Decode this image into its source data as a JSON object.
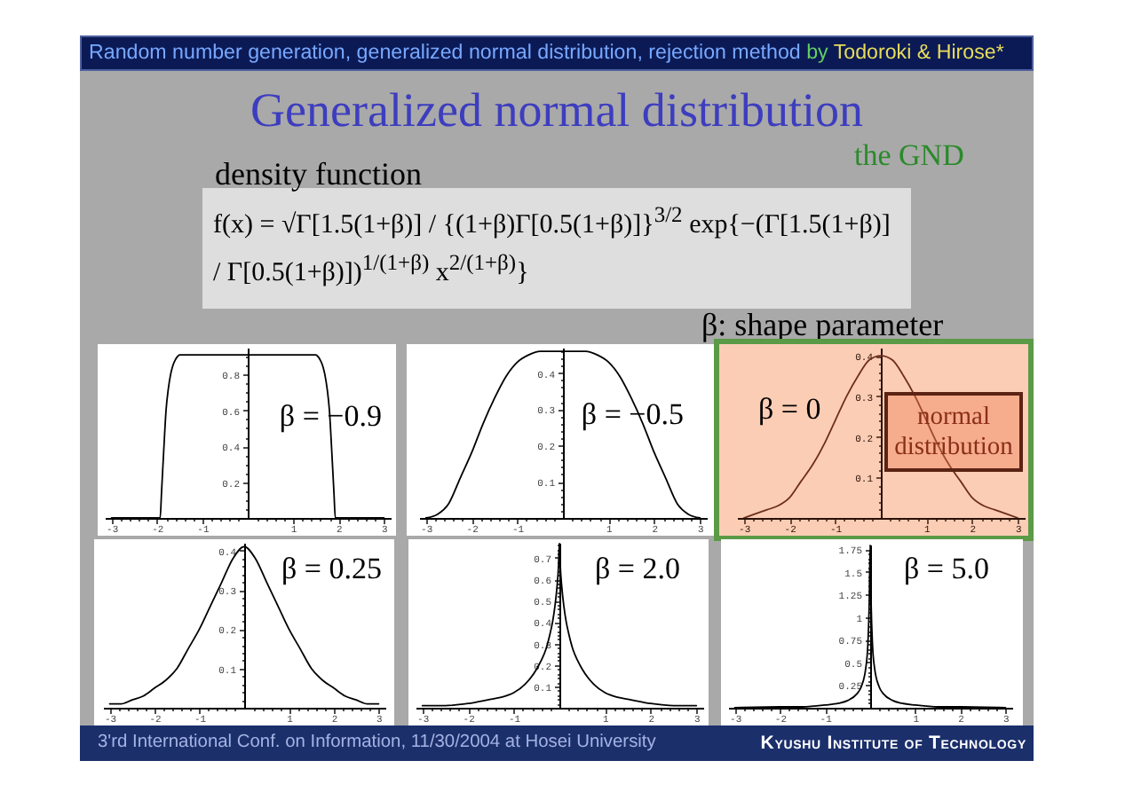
{
  "chart_data": [
    {
      "type": "other",
      "title": "Generalized normal distribution",
      "annotations": [
        "Random number generation, generalized normal distribution, rejection method",
        "by",
        "Todoroki & Hirose*",
        "the GND",
        "density function",
        "f(x) = √Γ[1.5(1+β)] / {(1+β)Γ[0.5(1+β)]}$^{3/2}$ exp{−(Γ[1.5(1+β)] / Γ[0.5(1+β)])$^{1/(1+β)}$ x$^{2/(1+β)}$}",
        "β: shape parameter"
      ]
    },
    {
      "type": "line",
      "color": "#000000",
      "annotations": [
        "β = −0.9"
      ],
      "xlim": [
        -3.15,
        3.15
      ],
      "ylim": [
        0,
        0.95
      ],
      "x": [
        -3,
        -2,
        -1.93,
        -1.9,
        -1.85,
        -1.8,
        -1.75,
        -1.7,
        -1.65,
        -1.6,
        -1.55,
        -1.5,
        0,
        1.5,
        1.55,
        1.6,
        1.65,
        1.7,
        1.75,
        1.8,
        1.85,
        1.9,
        1.93,
        2,
        3
      ],
      "values": [
        0,
        0,
        0,
        0.14,
        0.38,
        0.6,
        0.72,
        0.8,
        0.85,
        0.88,
        0.9,
        0.91,
        0.91,
        0.91,
        0.9,
        0.88,
        0.85,
        0.8,
        0.72,
        0.6,
        0.38,
        0.14,
        0,
        0,
        0
      ],
      "xticks": [
        -3,
        {
          "value": -2.8,
          "label": null
        },
        {
          "value": -2.6,
          "label": null
        },
        {
          "value": -2.4,
          "label": null
        },
        {
          "value": -2.2,
          "label": null
        },
        -2,
        {
          "value": -1.8,
          "label": null
        },
        {
          "value": -1.6,
          "label": null
        },
        {
          "value": -1.4,
          "label": null
        },
        {
          "value": -1.2,
          "label": null
        },
        -1,
        {
          "value": -0.8,
          "label": null
        },
        {
          "value": -0.6,
          "label": null
        },
        {
          "value": -0.4,
          "label": null
        },
        {
          "value": -0.2,
          "label": null
        },
        {
          "value": 0.2,
          "label": null
        },
        {
          "value": 0.4,
          "label": null
        },
        {
          "value": 0.6,
          "label": null
        },
        {
          "value": 0.8,
          "label": null
        },
        1,
        {
          "value": 1.2,
          "label": null
        },
        {
          "value": 1.4,
          "label": null
        },
        {
          "value": 1.6,
          "label": null
        },
        {
          "value": 1.8,
          "label": null
        },
        2,
        {
          "value": 2.2,
          "label": null
        },
        {
          "value": 2.4,
          "label": null
        },
        {
          "value": 2.6,
          "label": null
        },
        {
          "value": 2.8,
          "label": null
        },
        3
      ],
      "yticks": [
        {
          "value": 0.05,
          "label": null
        },
        {
          "value": 0.1,
          "label": null
        },
        {
          "value": 0.15,
          "label": null
        },
        0.2,
        {
          "value": 0.25,
          "label": null
        },
        {
          "value": 0.3,
          "label": null
        },
        {
          "value": 0.35,
          "label": null
        },
        0.4,
        {
          "value": 0.45,
          "label": null
        },
        {
          "value": 0.5,
          "label": null
        },
        {
          "value": 0.55,
          "label": null
        },
        0.6,
        {
          "value": 0.65,
          "label": null
        },
        {
          "value": 0.7,
          "label": null
        },
        {
          "value": 0.75,
          "label": null
        },
        0.8,
        {
          "value": 0.85,
          "label": null
        },
        {
          "value": 0.9,
          "label": null
        }
      ]
    },
    {
      "type": "line",
      "color": "#000000",
      "annotations": [
        "β = −0.5"
      ],
      "xlim": [
        -3.15,
        3.15
      ],
      "ylim": [
        0,
        0.47
      ],
      "x": [
        -3,
        -2.75,
        -2.5,
        -2.25,
        -2,
        -1.75,
        -1.5,
        -1.25,
        -1,
        -0.75,
        -0.5,
        0,
        0.5,
        0.75,
        1,
        1.25,
        1.5,
        1.75,
        2,
        2.25,
        2.5,
        2.75,
        3
      ],
      "values": [
        0,
        0.01,
        0.04,
        0.11,
        0.18,
        0.26,
        0.33,
        0.39,
        0.43,
        0.45,
        0.46,
        0.46,
        0.46,
        0.45,
        0.43,
        0.39,
        0.33,
        0.26,
        0.18,
        0.11,
        0.04,
        0.01,
        0
      ],
      "xticks": [
        -3,
        {
          "value": -2.8,
          "label": null
        },
        {
          "value": -2.6,
          "label": null
        },
        {
          "value": -2.4,
          "label": null
        },
        {
          "value": -2.2,
          "label": null
        },
        -2,
        {
          "value": -1.8,
          "label": null
        },
        {
          "value": -1.6,
          "label": null
        },
        {
          "value": -1.4,
          "label": null
        },
        {
          "value": -1.2,
          "label": null
        },
        -1,
        {
          "value": -0.8,
          "label": null
        },
        {
          "value": -0.6,
          "label": null
        },
        {
          "value": -0.4,
          "label": null
        },
        {
          "value": -0.2,
          "label": null
        },
        {
          "value": 0.2,
          "label": null
        },
        {
          "value": 0.4,
          "label": null
        },
        {
          "value": 0.6,
          "label": null
        },
        {
          "value": 0.8,
          "label": null
        },
        1,
        {
          "value": 1.2,
          "label": null
        },
        {
          "value": 1.4,
          "label": null
        },
        {
          "value": 1.6,
          "label": null
        },
        {
          "value": 1.8,
          "label": null
        },
        2,
        {
          "value": 2.2,
          "label": null
        },
        {
          "value": 2.4,
          "label": null
        },
        {
          "value": 2.6,
          "label": null
        },
        {
          "value": 2.8,
          "label": null
        },
        3
      ],
      "yticks": [
        {
          "value": 0.02,
          "label": null
        },
        {
          "value": 0.04,
          "label": null
        },
        {
          "value": 0.06,
          "label": null
        },
        {
          "value": 0.08,
          "label": null
        },
        0.1,
        {
          "value": 0.12,
          "label": null
        },
        {
          "value": 0.14,
          "label": null
        },
        {
          "value": 0.16,
          "label": null
        },
        {
          "value": 0.18,
          "label": null
        },
        0.2,
        {
          "value": 0.22,
          "label": null
        },
        {
          "value": 0.24,
          "label": null
        },
        {
          "value": 0.26,
          "label": null
        },
        {
          "value": 0.28,
          "label": null
        },
        0.3,
        {
          "value": 0.32,
          "label": null
        },
        {
          "value": 0.34,
          "label": null
        },
        {
          "value": 0.36,
          "label": null
        },
        {
          "value": 0.38,
          "label": null
        },
        0.4,
        {
          "value": 0.42,
          "label": null
        },
        {
          "value": 0.44,
          "label": null
        },
        {
          "value": 0.46,
          "label": null
        }
      ]
    },
    {
      "type": "line",
      "color": "#6e2e1c",
      "annotations": [
        "β = 0",
        "normal distribution"
      ],
      "xlim": [
        -3.15,
        3.15
      ],
      "ylim": [
        0,
        0.42
      ],
      "x": [
        -3,
        -2.75,
        -2.5,
        -2.25,
        -2,
        -1.75,
        -1.5,
        -1.25,
        -1,
        -0.75,
        -0.5,
        -0.25,
        0,
        0.25,
        0.5,
        0.75,
        1,
        1.25,
        1.5,
        1.75,
        2,
        2.25,
        2.5,
        2.75,
        3
      ],
      "values": [
        0,
        0.01,
        0.02,
        0.03,
        0.05,
        0.09,
        0.13,
        0.18,
        0.24,
        0.3,
        0.35,
        0.39,
        0.4,
        0.39,
        0.35,
        0.3,
        0.24,
        0.18,
        0.13,
        0.09,
        0.05,
        0.03,
        0.02,
        0.01,
        0
      ],
      "xticks": [
        -3,
        {
          "value": -2.8,
          "label": null
        },
        {
          "value": -2.6,
          "label": null
        },
        {
          "value": -2.4,
          "label": null
        },
        {
          "value": -2.2,
          "label": null
        },
        -2,
        {
          "value": -1.8,
          "label": null
        },
        {
          "value": -1.6,
          "label": null
        },
        {
          "value": -1.4,
          "label": null
        },
        {
          "value": -1.2,
          "label": null
        },
        -1,
        {
          "value": -0.8,
          "label": null
        },
        {
          "value": -0.6,
          "label": null
        },
        {
          "value": -0.4,
          "label": null
        },
        {
          "value": -0.2,
          "label": null
        },
        {
          "value": 0.2,
          "label": null
        },
        {
          "value": 0.4,
          "label": null
        },
        {
          "value": 0.6,
          "label": null
        },
        {
          "value": 0.8,
          "label": null
        },
        1,
        {
          "value": 1.2,
          "label": null
        },
        {
          "value": 1.4,
          "label": null
        },
        {
          "value": 1.6,
          "label": null
        },
        {
          "value": 1.8,
          "label": null
        },
        2,
        {
          "value": 2.2,
          "label": null
        },
        {
          "value": 2.4,
          "label": null
        },
        {
          "value": 2.6,
          "label": null
        },
        {
          "value": 2.8,
          "label": null
        },
        3
      ],
      "yticks": [
        {
          "value": 0.02,
          "label": null
        },
        {
          "value": 0.04,
          "label": null
        },
        {
          "value": 0.06,
          "label": null
        },
        {
          "value": 0.08,
          "label": null
        },
        0.1,
        {
          "value": 0.12,
          "label": null
        },
        {
          "value": 0.14,
          "label": null
        },
        {
          "value": 0.16,
          "label": null
        },
        {
          "value": 0.18,
          "label": null
        },
        0.2,
        {
          "value": 0.22,
          "label": null
        },
        {
          "value": 0.24,
          "label": null
        },
        {
          "value": 0.26,
          "label": null
        },
        {
          "value": 0.28,
          "label": null
        },
        0.3,
        {
          "value": 0.32,
          "label": null
        },
        {
          "value": 0.34,
          "label": null
        },
        {
          "value": 0.36,
          "label": null
        },
        {
          "value": 0.38,
          "label": null
        },
        0.4
      ]
    },
    {
      "type": "line",
      "color": "#000000",
      "annotations": [
        "β = 0.25"
      ],
      "xlim": [
        -3.15,
        3.15
      ],
      "ylim": [
        0,
        0.42
      ],
      "x": [
        -3,
        -2.75,
        -2.5,
        -2.25,
        -2,
        -1.75,
        -1.5,
        -1.25,
        -1,
        -0.75,
        -0.5,
        -0.25,
        0,
        0.25,
        0.5,
        0.75,
        1,
        1.25,
        1.5,
        1.75,
        2,
        2.25,
        2.5,
        2.75,
        3
      ],
      "values": [
        0.01,
        0.01,
        0.02,
        0.03,
        0.05,
        0.07,
        0.1,
        0.15,
        0.2,
        0.26,
        0.32,
        0.38,
        0.41,
        0.38,
        0.32,
        0.26,
        0.2,
        0.15,
        0.1,
        0.07,
        0.05,
        0.03,
        0.02,
        0.01,
        0.01
      ],
      "xticks": [
        -3,
        {
          "value": -2.8,
          "label": null
        },
        {
          "value": -2.6,
          "label": null
        },
        {
          "value": -2.4,
          "label": null
        },
        {
          "value": -2.2,
          "label": null
        },
        -2,
        {
          "value": -1.8,
          "label": null
        },
        {
          "value": -1.6,
          "label": null
        },
        {
          "value": -1.4,
          "label": null
        },
        {
          "value": -1.2,
          "label": null
        },
        -1,
        {
          "value": -0.8,
          "label": null
        },
        {
          "value": -0.6,
          "label": null
        },
        {
          "value": -0.4,
          "label": null
        },
        {
          "value": -0.2,
          "label": null
        },
        {
          "value": 0.2,
          "label": null
        },
        {
          "value": 0.4,
          "label": null
        },
        {
          "value": 0.6,
          "label": null
        },
        {
          "value": 0.8,
          "label": null
        },
        1,
        {
          "value": 1.2,
          "label": null
        },
        {
          "value": 1.4,
          "label": null
        },
        {
          "value": 1.6,
          "label": null
        },
        {
          "value": 1.8,
          "label": null
        },
        2,
        {
          "value": 2.2,
          "label": null
        },
        {
          "value": 2.4,
          "label": null
        },
        {
          "value": 2.6,
          "label": null
        },
        {
          "value": 2.8,
          "label": null
        },
        3
      ],
      "yticks": [
        {
          "value": 0.02,
          "label": null
        },
        {
          "value": 0.04,
          "label": null
        },
        {
          "value": 0.06,
          "label": null
        },
        {
          "value": 0.08,
          "label": null
        },
        0.1,
        {
          "value": 0.12,
          "label": null
        },
        {
          "value": 0.14,
          "label": null
        },
        {
          "value": 0.16,
          "label": null
        },
        {
          "value": 0.18,
          "label": null
        },
        0.2,
        {
          "value": 0.22,
          "label": null
        },
        {
          "value": 0.24,
          "label": null
        },
        {
          "value": 0.26,
          "label": null
        },
        {
          "value": 0.28,
          "label": null
        },
        0.3,
        {
          "value": 0.32,
          "label": null
        },
        {
          "value": 0.34,
          "label": null
        },
        {
          "value": 0.36,
          "label": null
        },
        {
          "value": 0.38,
          "label": null
        },
        0.4
      ]
    },
    {
      "type": "line",
      "color": "#000000",
      "annotations": [
        "β = 2.0"
      ],
      "xlim": [
        -3.15,
        3.15
      ],
      "ylim": [
        0,
        0.77
      ],
      "x": [
        -3,
        -2.5,
        -2,
        -1.5,
        -1.25,
        -1,
        -0.75,
        -0.5,
        -0.4,
        -0.3,
        -0.2,
        -0.15,
        -0.1,
        -0.05,
        -0.02,
        0,
        0.02,
        0.05,
        0.1,
        0.15,
        0.2,
        0.3,
        0.4,
        0.5,
        0.75,
        1,
        1.25,
        1.5,
        2,
        2.5,
        3
      ],
      "values": [
        0.01,
        0.01,
        0.02,
        0.04,
        0.05,
        0.07,
        0.11,
        0.18,
        0.22,
        0.27,
        0.35,
        0.4,
        0.47,
        0.57,
        0.66,
        0.77,
        0.66,
        0.57,
        0.47,
        0.4,
        0.35,
        0.27,
        0.22,
        0.18,
        0.11,
        0.07,
        0.05,
        0.04,
        0.02,
        0.01,
        0.01
      ],
      "xticks": [
        -3,
        {
          "value": -2.8,
          "label": null
        },
        {
          "value": -2.6,
          "label": null
        },
        {
          "value": -2.4,
          "label": null
        },
        {
          "value": -2.2,
          "label": null
        },
        -2,
        {
          "value": -1.8,
          "label": null
        },
        {
          "value": -1.6,
          "label": null
        },
        {
          "value": -1.4,
          "label": null
        },
        {
          "value": -1.2,
          "label": null
        },
        -1,
        {
          "value": -0.8,
          "label": null
        },
        {
          "value": -0.6,
          "label": null
        },
        {
          "value": -0.4,
          "label": null
        },
        {
          "value": -0.2,
          "label": null
        },
        {
          "value": 0.2,
          "label": null
        },
        {
          "value": 0.4,
          "label": null
        },
        {
          "value": 0.6,
          "label": null
        },
        {
          "value": 0.8,
          "label": null
        },
        1,
        {
          "value": 1.2,
          "label": null
        },
        {
          "value": 1.4,
          "label": null
        },
        {
          "value": 1.6,
          "label": null
        },
        {
          "value": 1.8,
          "label": null
        },
        2,
        {
          "value": 2.2,
          "label": null
        },
        {
          "value": 2.4,
          "label": null
        },
        {
          "value": 2.6,
          "label": null
        },
        {
          "value": 2.8,
          "label": null
        },
        3
      ],
      "yticks": [
        {
          "value": 0.02,
          "label": null
        },
        {
          "value": 0.04,
          "label": null
        },
        {
          "value": 0.06,
          "label": null
        },
        {
          "value": 0.08,
          "label": null
        },
        0.1,
        {
          "value": 0.12,
          "label": null
        },
        {
          "value": 0.14,
          "label": null
        },
        {
          "value": 0.16,
          "label": null
        },
        {
          "value": 0.18,
          "label": null
        },
        0.2,
        {
          "value": 0.22,
          "label": null
        },
        {
          "value": 0.24,
          "label": null
        },
        {
          "value": 0.26,
          "label": null
        },
        {
          "value": 0.28,
          "label": null
        },
        0.3,
        {
          "value": 0.32,
          "label": null
        },
        {
          "value": 0.34,
          "label": null
        },
        {
          "value": 0.36,
          "label": null
        },
        {
          "value": 0.38,
          "label": null
        },
        0.4,
        {
          "value": 0.42,
          "label": null
        },
        {
          "value": 0.44,
          "label": null
        },
        {
          "value": 0.46,
          "label": null
        },
        {
          "value": 0.48,
          "label": null
        },
        0.5,
        {
          "value": 0.52,
          "label": null
        },
        {
          "value": 0.54,
          "label": null
        },
        {
          "value": 0.56,
          "label": null
        },
        {
          "value": 0.58,
          "label": null
        },
        0.6,
        {
          "value": 0.62,
          "label": null
        },
        {
          "value": 0.64,
          "label": null
        },
        {
          "value": 0.66,
          "label": null
        },
        {
          "value": 0.68,
          "label": null
        },
        0.7,
        {
          "value": 0.72,
          "label": null
        },
        {
          "value": 0.74,
          "label": null
        },
        {
          "value": 0.76,
          "label": null
        }
      ]
    },
    {
      "type": "line",
      "color": "#000000",
      "annotations": [
        "β = 5.0"
      ],
      "xlim": [
        -3.15,
        3.15
      ],
      "ylim": [
        0,
        1.8
      ],
      "x": [
        -3,
        -2,
        -1.5,
        -1,
        -0.7,
        -0.5,
        -0.3,
        -0.2,
        -0.1,
        -0.05,
        -0.02,
        0,
        0.02,
        0.05,
        0.1,
        0.2,
        0.3,
        0.5,
        0.7,
        1,
        1.5,
        2,
        3
      ],
      "values": [
        0,
        0.01,
        0.01,
        0.03,
        0.05,
        0.08,
        0.15,
        0.23,
        0.43,
        0.71,
        1.17,
        1.8,
        1.17,
        0.71,
        0.43,
        0.23,
        0.15,
        0.08,
        0.05,
        0.03,
        0.01,
        0.01,
        0
      ],
      "xticks": [
        -3,
        {
          "value": -2.8,
          "label": null
        },
        {
          "value": -2.6,
          "label": null
        },
        {
          "value": -2.4,
          "label": null
        },
        {
          "value": -2.2,
          "label": null
        },
        -2,
        {
          "value": -1.8,
          "label": null
        },
        {
          "value": -1.6,
          "label": null
        },
        {
          "value": -1.4,
          "label": null
        },
        {
          "value": -1.2,
          "label": null
        },
        -1,
        {
          "value": -0.8,
          "label": null
        },
        {
          "value": -0.6,
          "label": null
        },
        {
          "value": -0.4,
          "label": null
        },
        {
          "value": -0.2,
          "label": null
        },
        {
          "value": 0.2,
          "label": null
        },
        {
          "value": 0.4,
          "label": null
        },
        {
          "value": 0.6,
          "label": null
        },
        {
          "value": 0.8,
          "label": null
        },
        1,
        {
          "value": 1.2,
          "label": null
        },
        {
          "value": 1.4,
          "label": null
        },
        {
          "value": 1.6,
          "label": null
        },
        {
          "value": 1.8,
          "label": null
        },
        2,
        {
          "value": 2.2,
          "label": null
        },
        {
          "value": 2.4,
          "label": null
        },
        {
          "value": 2.6,
          "label": null
        },
        {
          "value": 2.8,
          "label": null
        },
        3
      ],
      "yticks": [
        {
          "value": 0.05,
          "label": null
        },
        {
          "value": 0.1,
          "label": null
        },
        {
          "value": 0.15,
          "label": null
        },
        {
          "value": 0.2,
          "label": null
        },
        0.25,
        {
          "value": 0.3,
          "label": null
        },
        {
          "value": 0.35,
          "label": null
        },
        {
          "value": 0.4,
          "label": null
        },
        {
          "value": 0.45,
          "label": null
        },
        0.5,
        {
          "value": 0.55,
          "label": null
        },
        {
          "value": 0.6,
          "label": null
        },
        {
          "value": 0.65,
          "label": null
        },
        {
          "value": 0.7,
          "label": null
        },
        0.75,
        {
          "value": 0.8,
          "label": null
        },
        {
          "value": 0.85,
          "label": null
        },
        {
          "value": 0.9,
          "label": null
        },
        {
          "value": 0.95,
          "label": null
        },
        1,
        {
          "value": 1.05,
          "label": null
        },
        {
          "value": 1.1,
          "label": null
        },
        {
          "value": 1.15,
          "label": null
        },
        {
          "value": 1.2,
          "label": null
        },
        1.25,
        {
          "value": 1.3,
          "label": null
        },
        {
          "value": 1.35,
          "label": null
        },
        {
          "value": 1.4,
          "label": null
        },
        {
          "value": 1.45,
          "label": null
        },
        1.5,
        {
          "value": 1.55,
          "label": null
        },
        {
          "value": 1.6,
          "label": null
        },
        {
          "value": 1.65,
          "label": null
        },
        {
          "value": 1.7,
          "label": null
        },
        1.75
      ]
    },
    {
      "type": "other",
      "annotations": [
        "3'rd International Conf. on Information, 11/30/2004 at Hosei University",
        "Kyushu Institute of Technology"
      ]
    }
  ]
}
